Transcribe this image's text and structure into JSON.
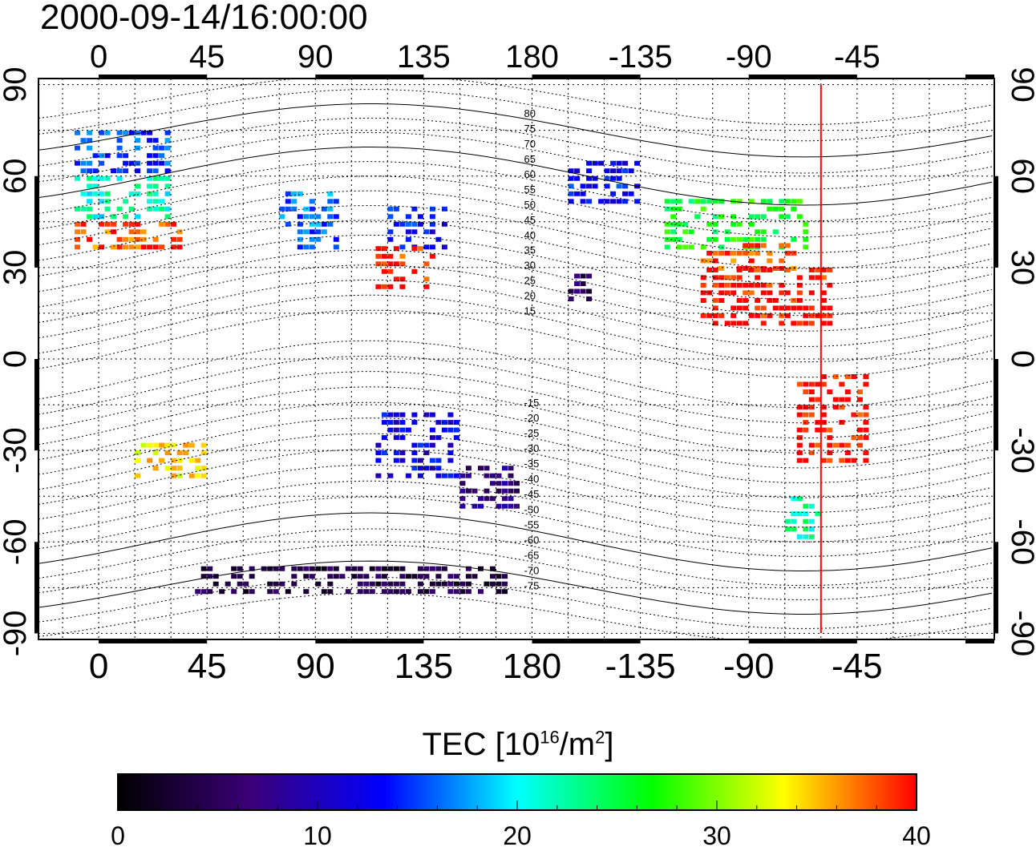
{
  "title": "2000-09-14/16:00:00",
  "map": {
    "lon_range": [
      -25,
      372
    ],
    "lat_range": [
      -92,
      92
    ],
    "lon_ticks": [
      0,
      45,
      90,
      135,
      180,
      -135,
      -90,
      -45
    ],
    "lat_ticks": [
      90,
      60,
      30,
      0,
      -30,
      -60,
      -90
    ],
    "grid": "dotted",
    "red_line_lon": 300,
    "magnetic_lat_labels": [
      80,
      75,
      70,
      65,
      60,
      55,
      50,
      45,
      40,
      35,
      30,
      25,
      20,
      15,
      -15,
      -20,
      -25,
      -30,
      -35,
      -40,
      -45,
      -50,
      -55,
      -60,
      -65,
      -70,
      -75
    ]
  },
  "colorbar": {
    "title_prefix": "TEC  [10",
    "title_sup1": "16",
    "title_mid": "/m",
    "title_sup2": "2",
    "title_suffix": "]",
    "ticks": [
      0,
      10,
      20,
      30,
      40
    ],
    "range": [
      0,
      40
    ],
    "stops": [
      "#000000",
      "#3a0078",
      "#0000ff",
      "#00ffff",
      "#00ff00",
      "#ffff00",
      "#ff0000"
    ]
  },
  "tec_regions": [
    {
      "lon": [
        -10,
        30
      ],
      "lat": [
        60,
        75
      ],
      "tec": 15
    },
    {
      "lon": [
        -10,
        30
      ],
      "lat": [
        45,
        60
      ],
      "tec": 21
    },
    {
      "lon": [
        -10,
        35
      ],
      "lat": [
        35,
        45
      ],
      "tec": 38
    },
    {
      "lon": [
        15,
        45
      ],
      "lat": [
        -40,
        -28
      ],
      "tec": 34
    },
    {
      "lon": [
        75,
        100
      ],
      "lat": [
        35,
        55
      ],
      "tec": 16
    },
    {
      "lon": [
        120,
        145
      ],
      "lat": [
        35,
        50
      ],
      "tec": 13
    },
    {
      "lon": [
        115,
        140
      ],
      "lat": [
        22,
        35
      ],
      "tec": 39
    },
    {
      "lon": [
        115,
        150
      ],
      "lat": [
        -40,
        -18
      ],
      "tec": 12
    },
    {
      "lon": [
        150,
        175
      ],
      "lat": [
        -50,
        -35
      ],
      "tec": 7
    },
    {
      "lon": [
        195,
        205
      ],
      "lat": [
        18,
        26
      ],
      "tec": 5
    },
    {
      "lon": [
        195,
        225
      ],
      "lat": [
        50,
        65
      ],
      "tec": 13
    },
    {
      "lon": [
        235,
        295
      ],
      "lat": [
        35,
        52
      ],
      "tec": 26
    },
    {
      "lon": [
        250,
        290
      ],
      "lat": [
        28,
        38
      ],
      "tec": 38
    },
    {
      "lon": [
        250,
        305
      ],
      "lat": [
        10,
        28
      ],
      "tec": 40
    },
    {
      "lon": [
        290,
        320
      ],
      "lat": [
        -35,
        -5
      ],
      "tec": 40
    },
    {
      "lon": [
        285,
        300
      ],
      "lat": [
        -60,
        -45
      ],
      "tec": 22
    },
    {
      "lon": [
        40,
        170
      ],
      "lat": [
        -78,
        -68
      ],
      "tec": 4
    }
  ]
}
